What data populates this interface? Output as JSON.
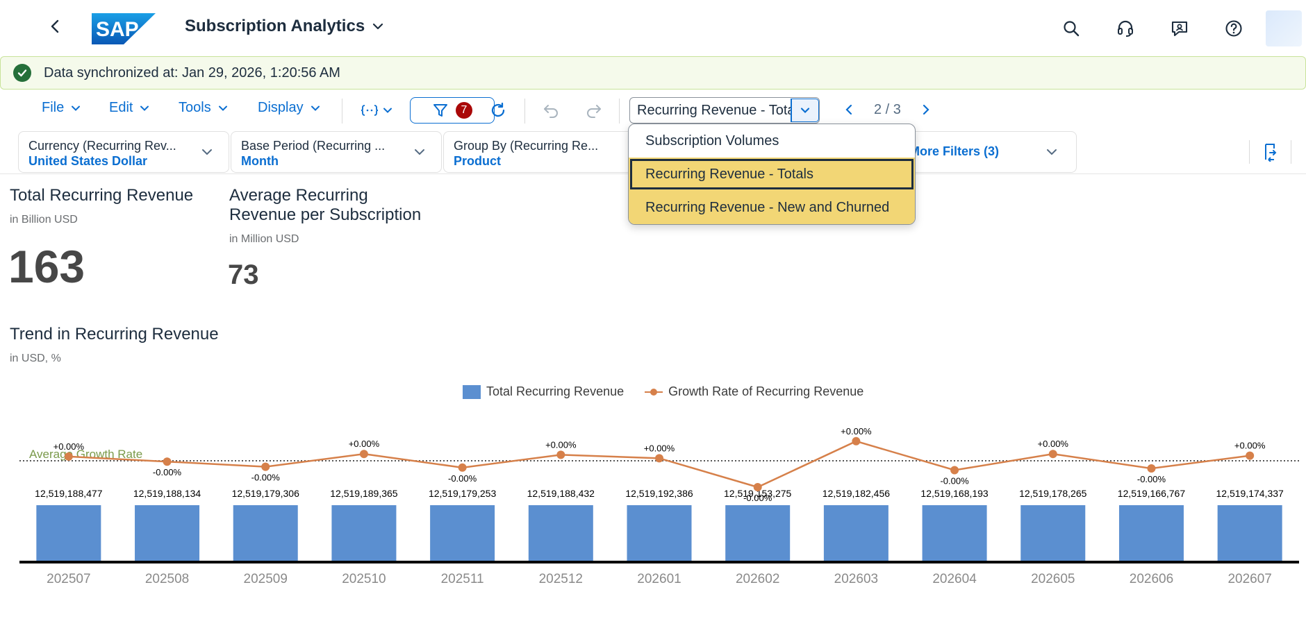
{
  "shell": {
    "title": "Subscription Analytics",
    "logo_text": "SAP",
    "icons": [
      "back-icon",
      "search-icon",
      "headset-icon",
      "feedback-icon",
      "help-icon"
    ]
  },
  "message_strip": {
    "text": "Data synchronized at: Jan 29, 2026, 1:20:56 AM",
    "status_color": "#256f3a"
  },
  "toolbar": {
    "menus": [
      "File",
      "Edit",
      "Tools",
      "Display"
    ],
    "filter_count": "7",
    "page_selector_value": "Recurring Revenue - Totals",
    "pager": "2 / 3"
  },
  "filters": [
    {
      "label": "Currency (Recurring Rev...",
      "value": "United States Dollar"
    },
    {
      "label": "Base Period (Recurring ...",
      "value": "Month"
    },
    {
      "label": "Group By (Recurring Re...",
      "value": "Product"
    }
  ],
  "more_filters": "More Filters (3)",
  "dropdown": {
    "options": [
      "Subscription Volumes",
      "Recurring Revenue - Totals",
      "Recurring Revenue - New and Churned"
    ],
    "selected_index": 1
  },
  "kpis": [
    {
      "title": "Total Recurring Revenue",
      "subtitle": "in Billion USD",
      "value": "163"
    },
    {
      "title": "Average Recurring Revenue per Subscription",
      "subtitle": "in Million USD",
      "value": "73"
    }
  ],
  "chart": {
    "title": "Trend in Recurring Revenue",
    "subtitle": "in USD, %",
    "legend": [
      "Total Recurring Revenue",
      "Growth Rate of Recurring Revenue"
    ],
    "average_label": "Average Growth Rate",
    "colors": {
      "bar": "#5b8fd0",
      "line": "#d6804a",
      "avg": "#7a9a4a"
    }
  },
  "chart_data": {
    "type": "bar",
    "categories": [
      "202507",
      "202508",
      "202509",
      "202510",
      "202511",
      "202512",
      "202601",
      "202602",
      "202603",
      "202604",
      "202605",
      "202606",
      "202607"
    ],
    "series": [
      {
        "name": "Total Recurring Revenue",
        "values": [
          12519188477,
          12519188134,
          12519179306,
          12519189365,
          12519179253,
          12519188432,
          12519192386,
          12519153275,
          12519182456,
          12519168193,
          12519178265,
          12519166767,
          12519174337
        ],
        "labels": [
          "12,519,188,477",
          "12,519,188,134",
          "12,519,179,306",
          "12,519,189,365",
          "12,519,179,253",
          "12,519,188,432",
          "12,519,192,386",
          "12,519,153,275",
          "12,519,182,456",
          "12,519,168,193",
          "12,519,178,265",
          "12,519,166,767",
          "12,519,174,337"
        ]
      },
      {
        "name": "Growth Rate of Recurring Revenue",
        "values": [
          5e-05,
          -1e-05,
          -7e-05,
          8e-05,
          -8e-05,
          7e-05,
          3e-05,
          -0.00031,
          0.00023,
          -0.00011,
          8e-05,
          -9e-05,
          6e-05
        ],
        "labels": [
          "+0.00%",
          "-0.00%",
          "-0.00%",
          "+0.00%",
          "-0.00%",
          "+0.00%",
          "+0.00%",
          "-0.00%",
          "+0.00%",
          "-0.00%",
          "+0.00%",
          "-0.00%",
          "+0.00%"
        ]
      }
    ]
  }
}
